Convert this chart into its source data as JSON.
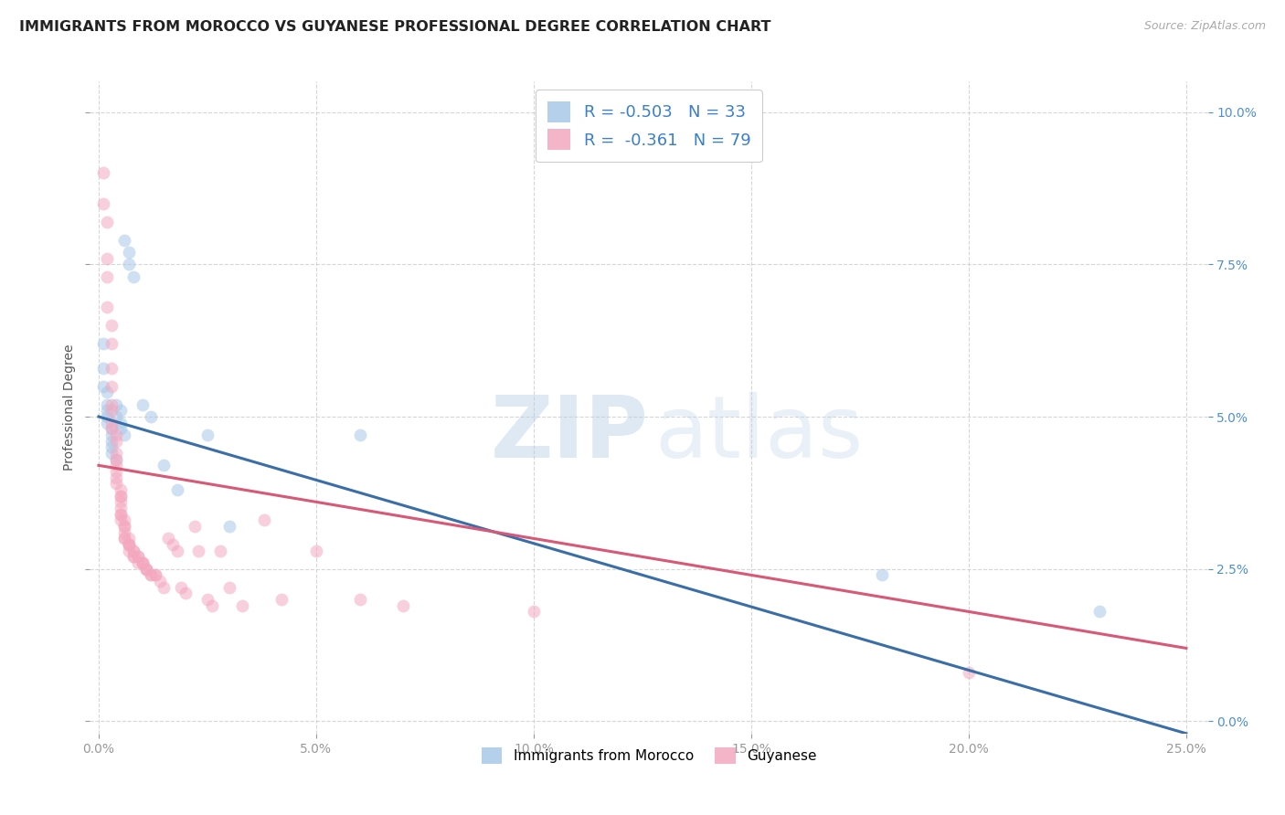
{
  "title": "IMMIGRANTS FROM MOROCCO VS GUYANESE PROFESSIONAL DEGREE CORRELATION CHART",
  "source": "Source: ZipAtlas.com",
  "xlabel_vals": [
    0.0,
    0.05,
    0.1,
    0.15,
    0.2,
    0.25
  ],
  "ylabel": "Professional Degree",
  "ylabel_vals": [
    0.0,
    0.025,
    0.05,
    0.075,
    0.1
  ],
  "xlim": [
    -0.002,
    0.255
  ],
  "ylim": [
    -0.002,
    0.105
  ],
  "legend_entries": [
    {
      "label": "Immigrants from Morocco",
      "R": "-0.503",
      "N": "33",
      "color": "#a8c8e8"
    },
    {
      "label": "Guyanese",
      "R": "-0.361",
      "N": "79",
      "color": "#f4a8c0"
    }
  ],
  "blue_scatter": [
    [
      0.001,
      0.062
    ],
    [
      0.001,
      0.058
    ],
    [
      0.001,
      0.055
    ],
    [
      0.002,
      0.054
    ],
    [
      0.002,
      0.052
    ],
    [
      0.002,
      0.051
    ],
    [
      0.002,
      0.05
    ],
    [
      0.002,
      0.049
    ],
    [
      0.003,
      0.048
    ],
    [
      0.003,
      0.047
    ],
    [
      0.003,
      0.046
    ],
    [
      0.003,
      0.045
    ],
    [
      0.003,
      0.044
    ],
    [
      0.004,
      0.043
    ],
    [
      0.004,
      0.052
    ],
    [
      0.004,
      0.05
    ],
    [
      0.005,
      0.051
    ],
    [
      0.005,
      0.049
    ],
    [
      0.005,
      0.048
    ],
    [
      0.006,
      0.047
    ],
    [
      0.006,
      0.079
    ],
    [
      0.007,
      0.077
    ],
    [
      0.007,
      0.075
    ],
    [
      0.008,
      0.073
    ],
    [
      0.01,
      0.052
    ],
    [
      0.012,
      0.05
    ],
    [
      0.015,
      0.042
    ],
    [
      0.018,
      0.038
    ],
    [
      0.025,
      0.047
    ],
    [
      0.03,
      0.032
    ],
    [
      0.06,
      0.047
    ],
    [
      0.18,
      0.024
    ],
    [
      0.23,
      0.018
    ]
  ],
  "pink_scatter": [
    [
      0.001,
      0.09
    ],
    [
      0.001,
      0.085
    ],
    [
      0.002,
      0.082
    ],
    [
      0.002,
      0.076
    ],
    [
      0.002,
      0.073
    ],
    [
      0.002,
      0.068
    ],
    [
      0.003,
      0.065
    ],
    [
      0.003,
      0.062
    ],
    [
      0.003,
      0.058
    ],
    [
      0.003,
      0.055
    ],
    [
      0.003,
      0.052
    ],
    [
      0.003,
      0.051
    ],
    [
      0.003,
      0.049
    ],
    [
      0.003,
      0.048
    ],
    [
      0.004,
      0.047
    ],
    [
      0.004,
      0.046
    ],
    [
      0.004,
      0.044
    ],
    [
      0.004,
      0.043
    ],
    [
      0.004,
      0.042
    ],
    [
      0.004,
      0.041
    ],
    [
      0.004,
      0.04
    ],
    [
      0.004,
      0.039
    ],
    [
      0.005,
      0.038
    ],
    [
      0.005,
      0.037
    ],
    [
      0.005,
      0.037
    ],
    [
      0.005,
      0.036
    ],
    [
      0.005,
      0.035
    ],
    [
      0.005,
      0.034
    ],
    [
      0.005,
      0.034
    ],
    [
      0.005,
      0.033
    ],
    [
      0.006,
      0.033
    ],
    [
      0.006,
      0.032
    ],
    [
      0.006,
      0.032
    ],
    [
      0.006,
      0.031
    ],
    [
      0.006,
      0.03
    ],
    [
      0.006,
      0.03
    ],
    [
      0.007,
      0.03
    ],
    [
      0.007,
      0.029
    ],
    [
      0.007,
      0.029
    ],
    [
      0.007,
      0.029
    ],
    [
      0.007,
      0.028
    ],
    [
      0.008,
      0.028
    ],
    [
      0.008,
      0.028
    ],
    [
      0.008,
      0.027
    ],
    [
      0.008,
      0.027
    ],
    [
      0.009,
      0.027
    ],
    [
      0.009,
      0.027
    ],
    [
      0.009,
      0.026
    ],
    [
      0.01,
      0.026
    ],
    [
      0.01,
      0.026
    ],
    [
      0.01,
      0.026
    ],
    [
      0.011,
      0.025
    ],
    [
      0.011,
      0.025
    ],
    [
      0.011,
      0.025
    ],
    [
      0.012,
      0.024
    ],
    [
      0.012,
      0.024
    ],
    [
      0.013,
      0.024
    ],
    [
      0.013,
      0.024
    ],
    [
      0.014,
      0.023
    ],
    [
      0.015,
      0.022
    ],
    [
      0.016,
      0.03
    ],
    [
      0.017,
      0.029
    ],
    [
      0.018,
      0.028
    ],
    [
      0.019,
      0.022
    ],
    [
      0.02,
      0.021
    ],
    [
      0.022,
      0.032
    ],
    [
      0.023,
      0.028
    ],
    [
      0.025,
      0.02
    ],
    [
      0.026,
      0.019
    ],
    [
      0.028,
      0.028
    ],
    [
      0.03,
      0.022
    ],
    [
      0.033,
      0.019
    ],
    [
      0.038,
      0.033
    ],
    [
      0.042,
      0.02
    ],
    [
      0.05,
      0.028
    ],
    [
      0.06,
      0.02
    ],
    [
      0.07,
      0.019
    ],
    [
      0.1,
      0.018
    ],
    [
      0.2,
      0.008
    ]
  ],
  "blue_line_x": [
    0.0,
    0.25
  ],
  "blue_line_y": [
    0.05,
    -0.002
  ],
  "pink_line_x": [
    0.0,
    0.25
  ],
  "pink_line_y": [
    0.042,
    0.012
  ],
  "scatter_size": 100,
  "scatter_alpha": 0.55,
  "blue_color": "#a8c8e8",
  "pink_color": "#f4a8c0",
  "blue_line_color": "#3a6ea8",
  "pink_line_color": "#d85878",
  "bg_color": "#ffffff",
  "watermark_zip": "ZIP",
  "watermark_atlas": "atlas",
  "grid_color": "#cccccc",
  "title_fontsize": 11.5,
  "axis_label_fontsize": 10,
  "tick_fontsize": 10,
  "right_tick_color": "#5090c8",
  "left_tick_color": "#999999",
  "legend_text_color": "#3a7fc8",
  "legend_label_color": "#222222"
}
